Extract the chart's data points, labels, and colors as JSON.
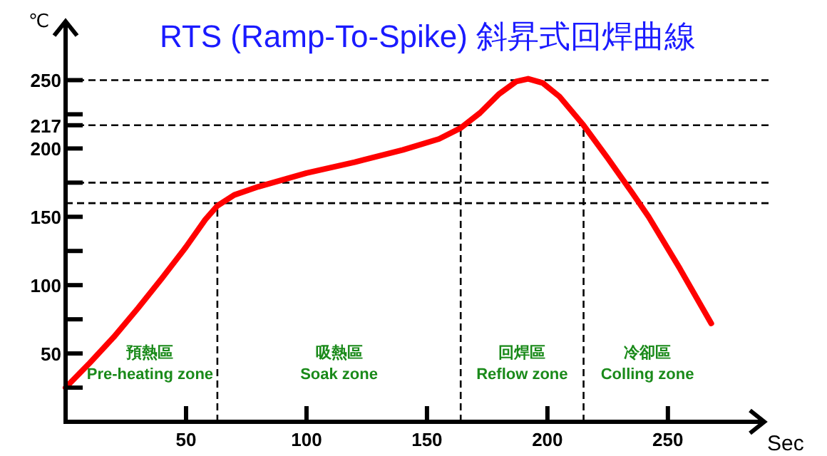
{
  "chart_data": {
    "type": "line",
    "title": "RTS (Ramp-To-Spike) 斜昇式回焊曲線",
    "xlabel": "Sec",
    "ylabel": "℃",
    "x": [
      0,
      10,
      20,
      30,
      40,
      50,
      58,
      63,
      70,
      80,
      100,
      120,
      140,
      155,
      164,
      172,
      180,
      187,
      192,
      198,
      205,
      215,
      225,
      235,
      242,
      255,
      268
    ],
    "series": [
      {
        "color": "#ff0000",
        "values": [
          25,
          43,
          62,
          83,
          105,
          128,
          148,
          158,
          166,
          172,
          182,
          190,
          199,
          207,
          215,
          226,
          240,
          249,
          251,
          248,
          238,
          217,
          193,
          168,
          150,
          112,
          72
        ]
      }
    ],
    "xlim": [
      0,
      290
    ],
    "ylim": [
      0,
      293
    ],
    "xticks": [
      50,
      100,
      150,
      200,
      250
    ],
    "yticks": [
      {
        "value": 25,
        "label": null
      },
      50,
      {
        "value": 75,
        "label": null
      },
      100,
      {
        "value": 125,
        "label": null
      },
      150,
      {
        "value": 175,
        "label": null
      },
      200,
      217,
      {
        "value": 225,
        "label": null
      },
      250
    ],
    "ref_lines": [
      {
        "axis": "y",
        "value": 250,
        "line_style": "dashed"
      },
      {
        "axis": "y",
        "value": 217,
        "line_style": "dashed"
      },
      {
        "axis": "y",
        "value": 175,
        "line_style": "dashed"
      },
      {
        "axis": "y",
        "value": 160,
        "line_style": "dashed"
      },
      {
        "axis": "x",
        "value": 63,
        "line_style": "dashed"
      },
      {
        "axis": "x",
        "value": 164,
        "line_style": "dashed"
      },
      {
        "axis": "x",
        "value": 215,
        "line_style": "dashed"
      }
    ],
    "annotations": [
      "預熱區\nPre-heating zone",
      "吸熱區\nSoak zone",
      "回焊區\nReflow zone",
      "冷卻區\nColling zone"
    ],
    "grid": false,
    "marker": "none",
    "line_style": "solid"
  }
}
